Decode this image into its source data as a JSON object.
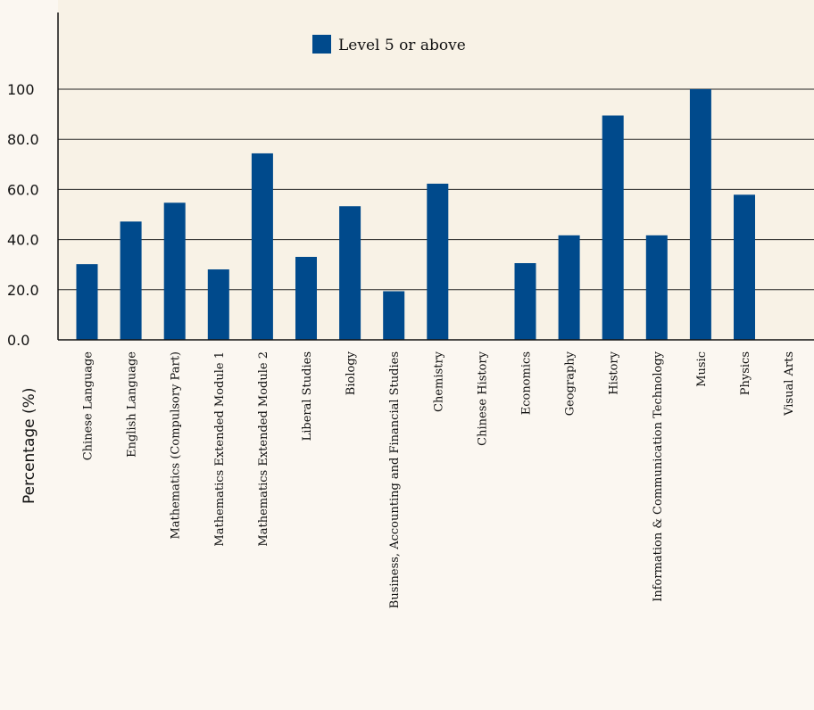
{
  "chart_data": {
    "type": "bar",
    "ylabel": "Percentage (%)",
    "ylim": [
      0,
      100
    ],
    "yticks": [
      "0.0",
      "20.0",
      "40.0",
      "60.0",
      "80.0",
      "100"
    ],
    "categories": [
      "Chinese Language",
      "English Language",
      "Mathematics (Compulsory Part)",
      "Mathematics Extended Module 1",
      "Mathematics Extended Module 2",
      "Liberal Studies",
      "Biology",
      "Business, Accounting and Financial Studies",
      "Chemistry",
      "Chinese History",
      "Economics",
      "Geography",
      "History",
      "Information & Communication Technology",
      "Music",
      "Physics",
      "Visual Arts"
    ],
    "series": [
      {
        "name": "Level 5 or above",
        "color": "#004a8c",
        "values": [
          30.2,
          47.2,
          54.7,
          28.1,
          74.4,
          33.1,
          53.3,
          19.4,
          62.3,
          0,
          30.6,
          41.7,
          89.5,
          41.7,
          100,
          57.9,
          0
        ]
      }
    ],
    "legend_position": "top-center",
    "grid": true,
    "plot_background": "#f8f2e6",
    "background_color": "#fbf7f1"
  }
}
